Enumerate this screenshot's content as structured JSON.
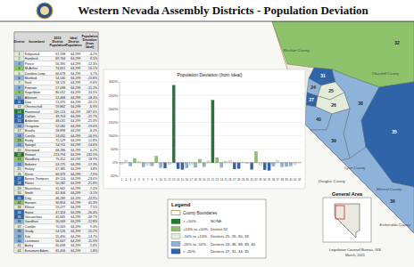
{
  "header": {
    "title": "Western Nevada Assembly Districts - Population Deviation"
  },
  "table": {
    "columns": [
      "District",
      "Incumbent",
      "2010 District Population",
      "Ideal District Population",
      "Population Deviation (from Ideal)"
    ],
    "rows": [
      [
        "1",
        "Kirkpatrick",
        "61,598",
        "64,299",
        "-4.2%"
      ],
      [
        "2",
        "Hambrick",
        "69,764",
        "64,299",
        "8.5%"
      ],
      [
        "3",
        "Pierce",
        "56,390",
        "64,299",
        "-12.3%"
      ],
      [
        "4",
        "McArthur",
        "74,651",
        "64,299",
        "16.1%"
      ],
      [
        "5",
        "Dondero Loop",
        "66,678",
        "64,299",
        "3.7%"
      ],
      [
        "6",
        "Munford",
        "54,140",
        "64,299",
        "-15.8%"
      ],
      [
        "7",
        "Neal",
        "58,126",
        "64,299",
        "-9.6%"
      ],
      [
        "8",
        "Frierson",
        "57,098",
        "64,299",
        "-11.2%"
      ],
      [
        "9",
        "Segerblom",
        "80,052",
        "64,299",
        "24.5%"
      ],
      [
        "10",
        "Atkinson",
        "52,468",
        "64,299",
        "-18.4%"
      ],
      [
        "11",
        "Diaz",
        "51,375",
        "64,299",
        "-20.1%"
      ],
      [
        "12",
        "Ohrenschall",
        "59,862",
        "64,299",
        "-6.9%"
      ],
      [
        "13",
        "Hammond",
        "249,223",
        "64,299",
        "287.6%"
      ],
      [
        "14",
        "Carlton",
        "49,703",
        "64,299",
        "-22.7%"
      ],
      [
        "15",
        "Anderson",
        "48,031",
        "64,299",
        "-25.3%"
      ],
      [
        "16",
        "Oceguera",
        "52,082",
        "64,299",
        "-19.0%"
      ],
      [
        "17",
        "Brooks",
        "58,898",
        "64,299",
        "-8.4%"
      ],
      [
        "18",
        "Carrillo",
        "53,432",
        "64,299",
        "-16.9%"
      ],
      [
        "19",
        "Hardy",
        "72,529",
        "64,299",
        "12.8%"
      ],
      [
        "20",
        "Spiegel",
        "54,911",
        "64,299",
        "-14.6%"
      ],
      [
        "21",
        "Sherwood",
        "68,286",
        "64,299",
        "6.2%"
      ],
      [
        "22",
        "Stewart",
        "213,794",
        "64,299",
        "232.5%"
      ],
      [
        "23",
        "Woodbury",
        "76,452",
        "64,299",
        "18.9%"
      ],
      [
        "24",
        "Bobzien",
        "53,175",
        "64,299",
        "-17.3%"
      ],
      [
        "25",
        "Hickey",
        "67,385",
        "64,299",
        "4.8%"
      ],
      [
        "26",
        "Kirner",
        "69,379",
        "64,299",
        "7.9%"
      ],
      [
        "27",
        "Benitez-Thompson",
        "49,124",
        "64,299",
        "-23.6%"
      ],
      [
        "28",
        "Flores",
        "50,282",
        "64,299",
        "-21.8%"
      ],
      [
        "29",
        "Mastroluca",
        "65,842",
        "64,299",
        "2.4%"
      ],
      [
        "30",
        "Smith",
        "62,306",
        "64,299",
        "-3.1%"
      ],
      [
        "31",
        "Daly",
        "48,289",
        "64,299",
        "-24.9%"
      ],
      [
        "32",
        "Hansen",
        "90,854",
        "64,299",
        "41.3%"
      ],
      [
        "33",
        "Ellison",
        "59,477",
        "64,299",
        "-7.5%"
      ],
      [
        "34",
        "Horne",
        "47,324",
        "64,299",
        "-26.4%"
      ],
      [
        "35",
        "Goicoechea",
        "45,845",
        "64,299",
        "-28.7%"
      ],
      [
        "36",
        "Goedhart",
        "56,069",
        "64,299",
        "-12.8%"
      ],
      [
        "37",
        "Conklin",
        "70,343",
        "64,299",
        "9.4%"
      ],
      [
        "38",
        "Grady",
        "54,526",
        "64,299",
        "-15.2%"
      ],
      [
        "39",
        "Kite",
        "55,490",
        "64,299",
        "-13.7%"
      ],
      [
        "40",
        "Livermore",
        "56,647",
        "64,299",
        "-11.9%"
      ],
      [
        "41",
        "Aizley",
        "60,698",
        "64,299",
        "-5.6%"
      ],
      [
        "42",
        "Bustamante Adams",
        "65,456",
        "64,299",
        "1.8%"
      ]
    ]
  },
  "chart_data": {
    "type": "bar",
    "title": "Population Deviation (from Ideal)",
    "categories": [
      "1",
      "2",
      "3",
      "4",
      "5",
      "6",
      "7",
      "8",
      "9",
      "10",
      "11",
      "12",
      "13",
      "14",
      "15",
      "16",
      "17",
      "18",
      "19",
      "20",
      "21",
      "22",
      "23",
      "24",
      "25",
      "26",
      "27",
      "28",
      "29",
      "30",
      "31",
      "32",
      "33",
      "34",
      "35",
      "36",
      "37",
      "38",
      "39",
      "40",
      "41",
      "42"
    ],
    "values": [
      -4.2,
      8.5,
      -12.3,
      16.1,
      3.7,
      -15.8,
      -9.6,
      -11.2,
      24.5,
      -18.4,
      -20.1,
      -6.9,
      287.6,
      -22.7,
      -25.3,
      -19.0,
      -8.4,
      -16.9,
      12.8,
      -14.6,
      6.2,
      232.5,
      18.9,
      -17.3,
      4.8,
      7.9,
      -23.6,
      -21.8,
      2.4,
      -3.1,
      -24.9,
      41.3,
      -7.5,
      -26.4,
      -28.7,
      -12.8,
      9.4,
      -15.2,
      -13.7,
      -11.9,
      -5.6,
      1.8
    ],
    "colors": [
      "#e3ebd9",
      "#e3ebd9",
      "#8db3da",
      "#8fc36b",
      "#e3ebd9",
      "#8db3da",
      "#e3ebd9",
      "#8db3da",
      "#8fc36b",
      "#8db3da",
      "#2f64a8",
      "#e3ebd9",
      "#1f7a32",
      "#2f64a8",
      "#2f64a8",
      "#8db3da",
      "#e3ebd9",
      "#8db3da",
      "#8fc36b",
      "#8db3da",
      "#e3ebd9",
      "#1f7a32",
      "#8fc36b",
      "#8db3da",
      "#e3ebd9",
      "#e3ebd9",
      "#2f64a8",
      "#2f64a8",
      "#e3ebd9",
      "#e3ebd9",
      "#2f64a8",
      "#8fc36b",
      "#e3ebd9",
      "#2f64a8",
      "#2f64a8",
      "#8db3da",
      "#e3ebd9",
      "#8db3da",
      "#8db3da",
      "#8db3da",
      "#e3ebd9",
      "#e3ebd9"
    ],
    "ylim": [
      -50,
      300
    ],
    "yticks": [
      {
        "value": -50,
        "label": "-50%"
      },
      {
        "value": 0,
        "label": "0%"
      },
      {
        "value": 50,
        "label": "50%"
      },
      {
        "value": 100,
        "label": "100%"
      },
      {
        "value": 150,
        "label": "150%"
      },
      {
        "value": 200,
        "label": "200%"
      },
      {
        "value": 250,
        "label": "250%"
      },
      {
        "value": 300,
        "label": "300%"
      }
    ],
    "grid": true
  },
  "legend": {
    "title": "Legend",
    "boundary_label": "County Boundaries",
    "items": [
      {
        "label": "> +50%",
        "districts": "NONE",
        "color": "#1f7a32"
      },
      {
        "label": "+10% to +50%",
        "districts": "District 32",
        "color": "#8fc36b"
      },
      {
        "label": "-10% to +10%",
        "districts": "Districts 25, 26, 30, 33",
        "color": "#e3ebd9"
      },
      {
        "label": "-20% to -10%",
        "districts": "Districts 24, 36, 38, 39, 40",
        "color": "#8db3da"
      },
      {
        "label": "< -20%",
        "districts": "Districts 27, 31, 34, 35",
        "color": "#2f64a8"
      }
    ]
  },
  "map": {
    "counties": [
      "Washoe County",
      "Churchill County",
      "Lyon County",
      "Douglas County",
      "Mineral County",
      "Esmeralda County"
    ],
    "districts": [
      {
        "label": "32",
        "color": "#8fc36b"
      },
      {
        "label": "31",
        "color": "#2f64a8"
      },
      {
        "label": "24",
        "color": "#8db3da"
      },
      {
        "label": "25",
        "color": "#e3ebd9"
      },
      {
        "label": "27",
        "color": "#2f64a8"
      },
      {
        "label": "26",
        "color": "#e3ebd9"
      },
      {
        "label": "38",
        "color": "#8db3da"
      },
      {
        "label": "40",
        "color": "#8db3da"
      },
      {
        "label": "39",
        "color": "#8db3da"
      },
      {
        "label": "35",
        "color": "#2f64a8"
      },
      {
        "label": "36",
        "color": "#8db3da"
      }
    ]
  },
  "inset": {
    "title": "General Area"
  },
  "footer": [
    "Legislative Counsel Bureau, GIS",
    "March, 2011"
  ]
}
